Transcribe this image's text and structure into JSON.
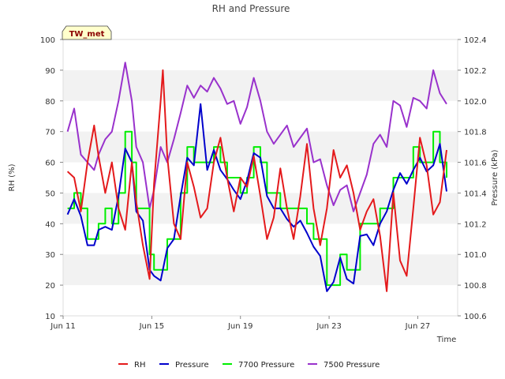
{
  "chart_data": {
    "type": "line",
    "title": "RH and Pressure",
    "site_badge": "TW_met",
    "xlabel": "Time",
    "ylabel": "RH (%)",
    "y2label": "Pressure (kPa)",
    "x_ticks": [
      "Jun 11",
      "Jun 15",
      "Jun 19",
      "Jun 23",
      "Jun 27"
    ],
    "x_tick_days": [
      11,
      15,
      19,
      23,
      27
    ],
    "xlim": [
      11,
      28.8
    ],
    "ylim": [
      10,
      100
    ],
    "y_ticks": [
      10,
      20,
      30,
      40,
      50,
      60,
      70,
      80,
      90,
      100
    ],
    "y2lim": [
      100.6,
      102.4
    ],
    "y2_ticks": [
      "100.6",
      "100.8",
      "101.0",
      "101.2",
      "101.4",
      "101.6",
      "101.8",
      "102.0",
      "102.2",
      "102.4"
    ],
    "y2_tick_values": [
      100.6,
      100.8,
      101.0,
      101.2,
      101.4,
      101.6,
      101.8,
      102.0,
      102.2,
      102.4
    ],
    "grid": "horizontal bands",
    "legend_position": "bottom",
    "colors": {
      "RH": "#e41a1c",
      "Pressure": "#0000cc",
      "7700 Pressure": "#00ee00",
      "7500 Pressure": "#9932cc",
      "band": "#f2f2f2",
      "badge_bg": "#ffffcc"
    },
    "series": [
      {
        "name": "RH",
        "axis": "left",
        "x": [
          11.2,
          11.5,
          11.8,
          12.1,
          12.4,
          12.6,
          12.9,
          13.2,
          13.5,
          13.8,
          14.1,
          14.3,
          14.6,
          14.9,
          15.1,
          15.4,
          15.5,
          15.7,
          16.0,
          16.3,
          16.6,
          16.9,
          17.2,
          17.5,
          17.8,
          18.1,
          18.4,
          18.7,
          19.0,
          19.3,
          19.6,
          19.9,
          20.2,
          20.5,
          20.8,
          21.1,
          21.4,
          21.7,
          22.0,
          22.3,
          22.6,
          22.9,
          23.2,
          23.5,
          23.8,
          24.1,
          24.4,
          24.7,
          25.0,
          25.3,
          25.6,
          25.9,
          26.2,
          26.5,
          26.8,
          27.1,
          27.4,
          27.7,
          28.0,
          28.3
        ],
        "values": [
          57,
          55,
          44,
          60,
          72,
          62,
          50,
          60,
          45,
          38,
          60,
          47,
          33,
          22,
          53,
          80,
          90,
          62,
          40,
          35,
          60,
          52,
          42,
          45,
          60,
          68,
          55,
          44,
          55,
          52,
          62,
          49,
          35,
          42,
          58,
          45,
          35,
          49,
          66,
          45,
          33,
          45,
          64,
          55,
          59,
          50,
          38,
          44,
          48,
          36,
          18,
          50,
          28,
          23,
          45,
          68,
          59,
          43,
          47,
          64
        ]
      },
      {
        "name": "Pressure",
        "axis": "right",
        "x": [
          11.2,
          11.5,
          11.8,
          12.1,
          12.4,
          12.6,
          12.9,
          13.2,
          13.5,
          13.8,
          14.1,
          14.3,
          14.6,
          14.9,
          15.1,
          15.4,
          15.7,
          16.0,
          16.3,
          16.6,
          16.9,
          17.2,
          17.5,
          17.8,
          18.1,
          18.4,
          18.7,
          19.0,
          19.3,
          19.6,
          19.9,
          20.2,
          20.5,
          20.8,
          21.1,
          21.4,
          21.7,
          22.0,
          22.3,
          22.6,
          22.9,
          23.2,
          23.5,
          23.8,
          24.1,
          24.4,
          24.7,
          25.0,
          25.3,
          25.6,
          25.9,
          26.2,
          26.5,
          26.8,
          27.1,
          27.4,
          27.7,
          28.0,
          28.3
        ],
        "values": [
          101.26,
          101.36,
          101.25,
          101.06,
          101.06,
          101.16,
          101.18,
          101.16,
          101.38,
          101.69,
          101.6,
          101.28,
          101.22,
          100.9,
          100.86,
          100.83,
          101.04,
          101.1,
          101.38,
          101.63,
          101.58,
          101.98,
          101.55,
          101.68,
          101.55,
          101.49,
          101.42,
          101.36,
          101.48,
          101.66,
          101.63,
          101.38,
          101.3,
          101.3,
          101.23,
          101.18,
          101.22,
          101.14,
          101.05,
          100.99,
          100.76,
          100.82,
          100.98,
          100.84,
          100.81,
          101.12,
          101.13,
          101.06,
          101.2,
          101.28,
          101.42,
          101.53,
          101.46,
          101.55,
          101.63,
          101.54,
          101.58,
          101.72,
          101.41
        ]
      },
      {
        "name": "7700 Pressure",
        "axis": "right",
        "x": [
          11.2,
          11.5,
          11.8,
          12.1,
          12.4,
          12.6,
          12.9,
          13.2,
          13.5,
          13.8,
          14.1,
          14.3,
          14.6,
          14.9,
          15.1,
          15.4,
          15.7,
          16.0,
          16.3,
          16.6,
          16.9,
          17.2,
          17.5,
          17.8,
          18.1,
          18.4,
          18.7,
          19.0,
          19.3,
          19.6,
          19.9,
          20.2,
          20.5,
          20.8,
          21.1,
          21.4,
          21.7,
          22.0,
          22.3,
          22.6,
          22.9,
          23.2,
          23.5,
          23.8,
          24.1,
          24.4,
          24.7,
          25.0,
          25.3,
          25.6,
          25.9,
          26.2,
          26.5,
          26.8,
          27.1,
          27.4,
          27.7,
          28.0,
          28.3
        ],
        "values": [
          101.3,
          101.4,
          101.3,
          101.1,
          101.1,
          101.2,
          101.3,
          101.2,
          101.4,
          101.8,
          101.6,
          101.3,
          101.3,
          101.0,
          100.9,
          100.9,
          101.1,
          101.1,
          101.4,
          101.7,
          101.6,
          101.6,
          101.6,
          101.7,
          101.6,
          101.5,
          101.5,
          101.4,
          101.5,
          101.7,
          101.6,
          101.4,
          101.4,
          101.3,
          101.3,
          101.3,
          101.3,
          101.2,
          101.1,
          101.1,
          100.8,
          100.8,
          101.0,
          100.9,
          100.9,
          101.2,
          101.2,
          101.2,
          101.3,
          101.3,
          101.5,
          101.5,
          101.5,
          101.7,
          101.6,
          101.6,
          101.8,
          101.6,
          101.5
        ]
      },
      {
        "name": "7500 Pressure",
        "axis": "right",
        "x": [
          11.2,
          11.5,
          11.8,
          12.1,
          12.4,
          12.6,
          12.9,
          13.2,
          13.5,
          13.8,
          14.1,
          14.3,
          14.6,
          14.9,
          15.1,
          15.4,
          15.7,
          16.0,
          16.3,
          16.6,
          16.9,
          17.2,
          17.5,
          17.8,
          18.1,
          18.4,
          18.7,
          19.0,
          19.3,
          19.6,
          19.9,
          20.2,
          20.5,
          20.8,
          21.1,
          21.4,
          21.7,
          22.0,
          22.3,
          22.6,
          22.9,
          23.2,
          23.5,
          23.8,
          24.1,
          24.4,
          24.7,
          25.0,
          25.3,
          25.6,
          25.9,
          26.2,
          26.5,
          26.8,
          27.1,
          27.4,
          27.7,
          28.0,
          28.3
        ],
        "values": [
          101.8,
          101.95,
          101.65,
          101.6,
          101.55,
          101.65,
          101.75,
          101.8,
          102.0,
          102.25,
          102.0,
          101.7,
          101.6,
          101.3,
          101.42,
          101.7,
          101.6,
          101.75,
          101.92,
          102.1,
          102.02,
          102.1,
          102.06,
          102.15,
          102.08,
          101.98,
          102.0,
          101.85,
          101.96,
          102.15,
          102.0,
          101.8,
          101.72,
          101.78,
          101.84,
          101.7,
          101.76,
          101.82,
          101.6,
          101.62,
          101.45,
          101.32,
          101.42,
          101.45,
          101.28,
          101.4,
          101.52,
          101.72,
          101.78,
          101.7,
          102.0,
          101.97,
          101.83,
          102.02,
          102.0,
          101.95,
          102.2,
          102.05,
          101.98
        ]
      }
    ]
  }
}
